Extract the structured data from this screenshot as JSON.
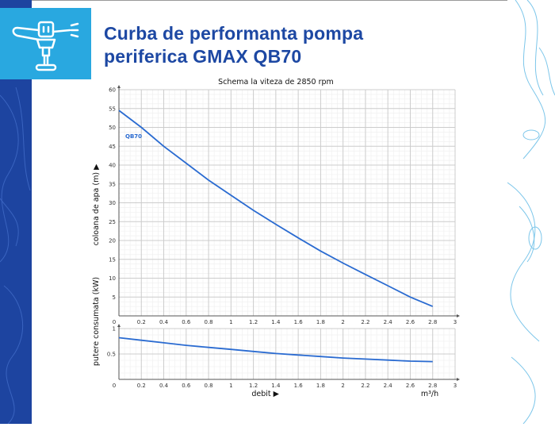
{
  "header": {
    "title_line1": "Curba de performanta pompa",
    "title_line2": "periferica GMAX QB70",
    "logo_icon": "sprinkler-icon"
  },
  "colors": {
    "brand_blue": "#1d48a3",
    "logo_bg": "#29a8e0",
    "curve": "#2a6bd1",
    "strip": "#1d44a0"
  },
  "chart_data": [
    {
      "type": "line",
      "title": "Schema la viteza de 2850 rpm",
      "ylabel": "coloana de apa (m) ▶",
      "xlim": [
        0,
        3
      ],
      "ylim": [
        0,
        60
      ],
      "x_ticks": [
        "0",
        "0.2",
        "0.4",
        "0.6",
        "0.8",
        "1",
        "1.2",
        "1.4",
        "1.6",
        "1.8",
        "2",
        "2.2",
        "2.4",
        "2.6",
        "2.8",
        "3"
      ],
      "y_ticks": [
        "5",
        "10",
        "15",
        "20",
        "25",
        "30",
        "35",
        "40",
        "45",
        "50",
        "55",
        "60"
      ],
      "grid": true,
      "series": [
        {
          "name": "QB70",
          "x": [
            0,
            0.2,
            0.4,
            0.6,
            0.8,
            1,
            1.2,
            1.4,
            1.6,
            1.8,
            2,
            2.2,
            2.4,
            2.6,
            2.8
          ],
          "y": [
            54.5,
            50,
            45,
            40.5,
            36,
            32,
            28,
            24.3,
            20.7,
            17.2,
            14,
            11,
            8,
            5,
            2.5
          ]
        }
      ]
    },
    {
      "type": "line",
      "ylabel": "putere consumata (kW)",
      "xlabel": "debit ▶",
      "xunit": "m³/h",
      "xlim": [
        0,
        3
      ],
      "ylim": [
        0,
        1
      ],
      "x_ticks": [
        "0",
        "0.2",
        "0.4",
        "0.6",
        "0.8",
        "1",
        "1.2",
        "1.4",
        "1.6",
        "1.8",
        "2",
        "2.2",
        "2.4",
        "2.6",
        "2.8",
        "3"
      ],
      "y_ticks": [
        "0.5",
        "1"
      ],
      "grid": true,
      "series": [
        {
          "x": [
            0,
            0.2,
            0.4,
            0.6,
            0.8,
            1,
            1.2,
            1.4,
            1.6,
            1.8,
            2,
            2.2,
            2.4,
            2.6,
            2.8
          ],
          "y": [
            0.82,
            0.77,
            0.72,
            0.67,
            0.63,
            0.59,
            0.55,
            0.51,
            0.48,
            0.45,
            0.42,
            0.4,
            0.38,
            0.36,
            0.35
          ]
        }
      ]
    }
  ]
}
